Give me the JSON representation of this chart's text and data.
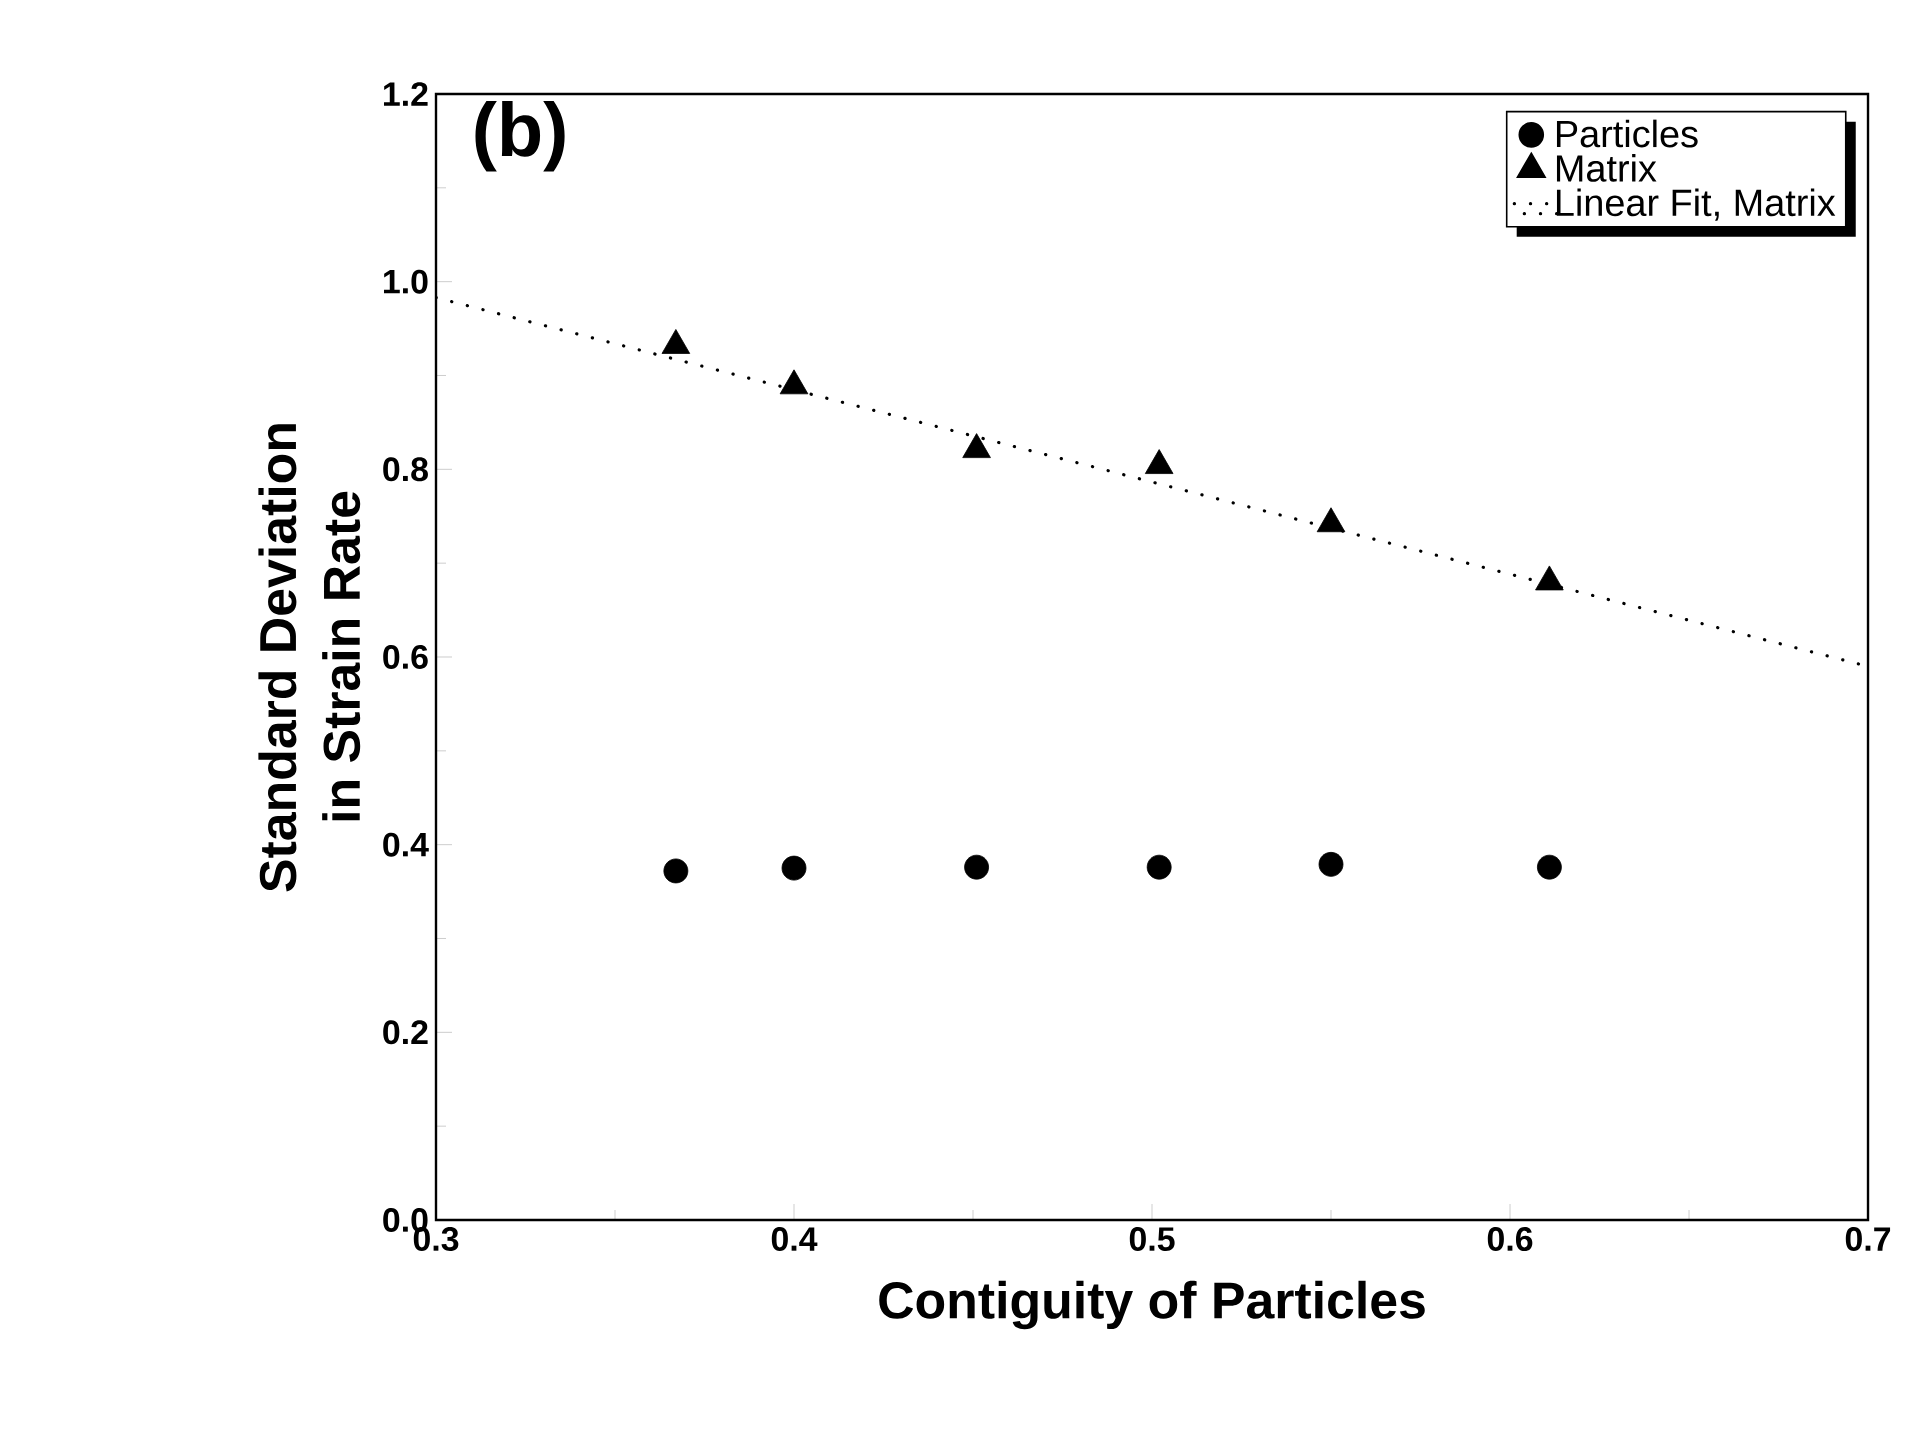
{
  "chart_data": {
    "type": "scatter",
    "xlabel": "Contiguity of Particles",
    "ylabel": "Standard Deviation\nin Strain Rate",
    "annotations": [
      "(b)"
    ],
    "xlim": [
      0.3,
      0.7
    ],
    "ylim": [
      0,
      1.2
    ],
    "xticks": [
      0.3,
      0.4,
      0.5,
      0.6,
      0.7
    ],
    "yticks": [
      {
        "value": 0,
        "label": "0.0"
      },
      0.2,
      0.4,
      0.6,
      0.8,
      {
        "value": 1,
        "label": "1.0"
      },
      1.2
    ],
    "legend": "top right",
    "grid": false,
    "series": [
      {
        "name": "Particles",
        "color": "#000000",
        "marker": "circle",
        "x": [
          0.367,
          0.4,
          0.451,
          0.502,
          0.55,
          0.611
        ],
        "values": [
          0.372,
          0.375,
          0.376,
          0.376,
          0.379,
          0.376
        ]
      },
      {
        "name": "Matrix",
        "color": "#000000",
        "marker": "triangle",
        "x": [
          0.367,
          0.4,
          0.451,
          0.502,
          0.55,
          0.611
        ],
        "values": [
          0.932,
          0.889,
          0.821,
          0.804,
          0.742,
          0.68
        ]
      },
      {
        "name": "Linear Fit, Matrix",
        "type": "line",
        "color": "#000000",
        "line_style": "dotted",
        "marker": "none",
        "x": [
          0.3,
          0.7
        ],
        "values": [
          0.983,
          0.59
        ]
      }
    ]
  }
}
